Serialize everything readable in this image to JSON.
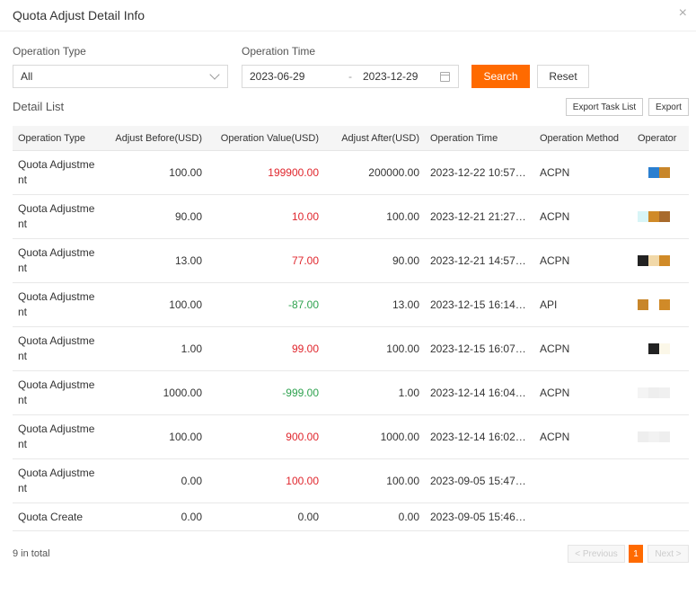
{
  "dialog": {
    "title": "Quota Adjust Detail Info",
    "close_glyph": "×"
  },
  "filters": {
    "operation_type_label": "Operation Type",
    "operation_type_value": "All",
    "operation_time_label": "Operation Time",
    "start_date": "2023-06-29",
    "date_separator": "-",
    "end_date": "2023-12-29",
    "search_label": "Search",
    "reset_label": "Reset"
  },
  "detail": {
    "section_title": "Detail List",
    "export_task_list_label": "Export Task List",
    "export_label": "Export"
  },
  "table": {
    "columns": [
      "Operation Type",
      "Adjust Before(USD)",
      "Operation Value(USD)",
      "Adjust After(USD)",
      "Operation Time",
      "Operation Method",
      "Operator"
    ],
    "rows": [
      {
        "type": "Quota Adjustment",
        "before": "100.00",
        "value": "199900.00",
        "value_color": "red",
        "after": "200000.00",
        "time": "2023-12-22 10:57:...",
        "method": "ACPN",
        "operator_colors": [
          "#ffffff",
          "#2b7fd0",
          "#c8862a"
        ]
      },
      {
        "type": "Quota Adjustment",
        "before": "90.00",
        "value": "10.00",
        "value_color": "red",
        "after": "100.00",
        "time": "2023-12-21 21:27:...",
        "method": "ACPN",
        "operator_colors": [
          "#d8f5f7",
          "#d08a28",
          "#a86a2c"
        ]
      },
      {
        "type": "Quota Adjustment",
        "before": "13.00",
        "value": "77.00",
        "value_color": "red",
        "after": "90.00",
        "time": "2023-12-21 14:57:...",
        "method": "ACPN",
        "operator_colors": [
          "#222222",
          "#f1d8a8",
          "#d08a28"
        ]
      },
      {
        "type": "Quota Adjustment",
        "before": "100.00",
        "value": "-87.00",
        "value_color": "green",
        "after": "13.00",
        "time": "2023-12-15 16:14:...",
        "method": "API",
        "operator_colors": [
          "#c8862a",
          "#ffffff",
          "#d08a28"
        ]
      },
      {
        "type": "Quota Adjustment",
        "before": "1.00",
        "value": "99.00",
        "value_color": "red",
        "after": "100.00",
        "time": "2023-12-15 16:07:...",
        "method": "ACPN",
        "operator_colors": [
          "#ffffff",
          "#222222",
          "#fbf7e8"
        ]
      },
      {
        "type": "Quota Adjustment",
        "before": "1000.00",
        "value": "-999.00",
        "value_color": "green",
        "after": "1.00",
        "time": "2023-12-14 16:04:...",
        "method": "ACPN",
        "operator_colors": [
          "#f4f4f4",
          "#eeeeee",
          "#f0f0f0"
        ]
      },
      {
        "type": "Quota Adjustment",
        "before": "100.00",
        "value": "900.00",
        "value_color": "red",
        "after": "1000.00",
        "time": "2023-12-14 16:02:...",
        "method": "ACPN",
        "operator_colors": [
          "#eeeeee",
          "#f2f2f2",
          "#eeeeee"
        ]
      },
      {
        "type": "Quota Adjustment",
        "before": "0.00",
        "value": "100.00",
        "value_color": "red",
        "after": "100.00",
        "time": "2023-09-05 15:47:...",
        "method": "",
        "operator_colors": []
      },
      {
        "type": "Quota Create",
        "before": "0.00",
        "value": "0.00",
        "value_color": "black",
        "after": "0.00",
        "time": "2023-09-05 15:46:...",
        "method": "",
        "operator_colors": []
      }
    ]
  },
  "footer": {
    "total_text": "9 in total",
    "prev_label": "< Previous",
    "current_page": "1",
    "next_label": "Next >"
  },
  "colors": {
    "accent": "#ff6a00",
    "positive": "#e0262d",
    "negative": "#2ea24f"
  }
}
